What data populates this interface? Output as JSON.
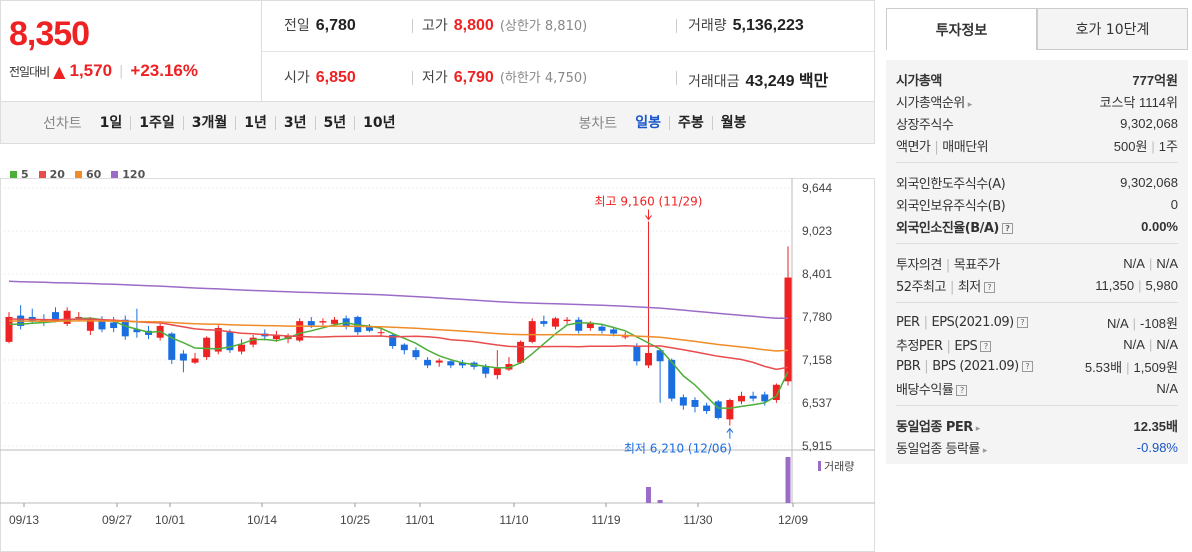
{
  "price": {
    "current": "8,350",
    "change_label": "전일대비",
    "change_symbol": "▲",
    "change_value": "1,570",
    "change_pct": "+23.16%"
  },
  "info": {
    "prev_label": "전일",
    "prev_value": "6,780",
    "high_label": "고가",
    "high_value": "8,800",
    "high_sub": "(상한가 8,810)",
    "volume_label": "거래량",
    "volume_value": "5,136,223",
    "open_label": "시가",
    "open_value": "6,850",
    "low_label": "저가",
    "low_value": "6,790",
    "low_sub": "(하한가 4,750)",
    "amount_label": "거래대금",
    "amount_value": "43,249 백만"
  },
  "period": {
    "line_label": "선차트",
    "line_items": [
      "1일",
      "1주일",
      "3개월",
      "1년",
      "3년",
      "5년",
      "10년"
    ],
    "candle_label": "봉차트",
    "candle_items": [
      "일봉",
      "주봉",
      "월봉"
    ],
    "selected_candle": "일봉"
  },
  "legend": [
    {
      "label": "5",
      "color": "#4caf3a"
    },
    {
      "label": "20",
      "color": "#e84c4c"
    },
    {
      "label": "60",
      "color": "#f08c28"
    },
    {
      "label": "120",
      "color": "#9b6bc8"
    }
  ],
  "chart_data": {
    "type": "candlestick",
    "y_ticks": [
      "9,644",
      "9,023",
      "8,401",
      "7,780",
      "7,158",
      "6,537",
      "5,915"
    ],
    "x_ticks": [
      "09/13",
      "09/27",
      "10/01",
      "10/14",
      "10/25",
      "11/01",
      "11/10",
      "11/19",
      "11/30",
      "12/09"
    ],
    "high_annotation": "최고 9,160 (11/29)",
    "low_annotation": "최저 6,210 (12/06)",
    "volume_label": "거래량",
    "candles": [
      {
        "o": 7420,
        "c": 7780,
        "h": 7850,
        "l": 7400
      },
      {
        "o": 7800,
        "c": 7650,
        "h": 7950,
        "l": 7600
      },
      {
        "o": 7780,
        "c": 7720,
        "h": 7900,
        "l": 7680
      },
      {
        "o": 7750,
        "c": 7700,
        "h": 7820,
        "l": 7650
      },
      {
        "o": 7850,
        "c": 7720,
        "h": 7920,
        "l": 7700
      },
      {
        "o": 7680,
        "c": 7870,
        "h": 7920,
        "l": 7650
      },
      {
        "o": 7780,
        "c": 7780,
        "h": 7850,
        "l": 7720
      },
      {
        "o": 7580,
        "c": 7740,
        "h": 7780,
        "l": 7520
      },
      {
        "o": 7740,
        "c": 7600,
        "h": 7790,
        "l": 7560
      },
      {
        "o": 7700,
        "c": 7620,
        "h": 7780,
        "l": 7560
      },
      {
        "o": 7740,
        "c": 7500,
        "h": 7800,
        "l": 7450
      },
      {
        "o": 7600,
        "c": 7560,
        "h": 7900,
        "l": 7480
      },
      {
        "o": 7580,
        "c": 7520,
        "h": 7650,
        "l": 7460
      },
      {
        "o": 7480,
        "c": 7650,
        "h": 7700,
        "l": 7440
      },
      {
        "o": 7540,
        "c": 7160,
        "h": 7560,
        "l": 7100
      },
      {
        "o": 7250,
        "c": 7150,
        "h": 7300,
        "l": 6980
      },
      {
        "o": 7120,
        "c": 7180,
        "h": 7260,
        "l": 7100
      },
      {
        "o": 7200,
        "c": 7480,
        "h": 7500,
        "l": 7160
      },
      {
        "o": 7280,
        "c": 7620,
        "h": 7660,
        "l": 7240
      },
      {
        "o": 7560,
        "c": 7300,
        "h": 7600,
        "l": 7260
      },
      {
        "o": 7280,
        "c": 7380,
        "h": 7460,
        "l": 7240
      },
      {
        "o": 7380,
        "c": 7480,
        "h": 7520,
        "l": 7340
      },
      {
        "o": 7540,
        "c": 7500,
        "h": 7600,
        "l": 7440
      },
      {
        "o": 7460,
        "c": 7520,
        "h": 7580,
        "l": 7420
      },
      {
        "o": 7460,
        "c": 7500,
        "h": 7540,
        "l": 7400
      },
      {
        "o": 7440,
        "c": 7720,
        "h": 7760,
        "l": 7420
      },
      {
        "o": 7720,
        "c": 7660,
        "h": 7780,
        "l": 7620
      },
      {
        "o": 7700,
        "c": 7720,
        "h": 7760,
        "l": 7660
      },
      {
        "o": 7680,
        "c": 7740,
        "h": 7780,
        "l": 7640
      },
      {
        "o": 7760,
        "c": 7640,
        "h": 7800,
        "l": 7600
      },
      {
        "o": 7780,
        "c": 7560,
        "h": 7800,
        "l": 7520
      },
      {
        "o": 7640,
        "c": 7580,
        "h": 7680,
        "l": 7560
      },
      {
        "o": 7560,
        "c": 7560,
        "h": 7620,
        "l": 7500
      },
      {
        "o": 7520,
        "c": 7360,
        "h": 7540,
        "l": 7320
      },
      {
        "o": 7380,
        "c": 7300,
        "h": 7400,
        "l": 7240
      },
      {
        "o": 7300,
        "c": 7200,
        "h": 7340,
        "l": 7160
      },
      {
        "o": 7160,
        "c": 7080,
        "h": 7200,
        "l": 7040
      },
      {
        "o": 7120,
        "c": 7150,
        "h": 7180,
        "l": 7060
      },
      {
        "o": 7140,
        "c": 7080,
        "h": 7170,
        "l": 7040
      },
      {
        "o": 7120,
        "c": 7080,
        "h": 7160,
        "l": 7040
      },
      {
        "o": 7120,
        "c": 7060,
        "h": 7140,
        "l": 7020
      },
      {
        "o": 7060,
        "c": 6960,
        "h": 7100,
        "l": 6900
      },
      {
        "o": 6940,
        "c": 7040,
        "h": 7300,
        "l": 6880
      },
      {
        "o": 7020,
        "c": 7100,
        "h": 7200,
        "l": 7000
      },
      {
        "o": 7120,
        "c": 7420,
        "h": 7440,
        "l": 7100
      },
      {
        "o": 7420,
        "c": 7720,
        "h": 7760,
        "l": 7400
      },
      {
        "o": 7720,
        "c": 7680,
        "h": 7800,
        "l": 7640
      },
      {
        "o": 7640,
        "c": 7760,
        "h": 7780,
        "l": 7600
      },
      {
        "o": 7720,
        "c": 7740,
        "h": 7780,
        "l": 7680
      },
      {
        "o": 7740,
        "c": 7580,
        "h": 7780,
        "l": 7540
      },
      {
        "o": 7620,
        "c": 7700,
        "h": 7720,
        "l": 7580
      },
      {
        "o": 7640,
        "c": 7580,
        "h": 7680,
        "l": 7540
      },
      {
        "o": 7600,
        "c": 7540,
        "h": 7640,
        "l": 7500
      },
      {
        "o": 7500,
        "c": 7500,
        "h": 7560,
        "l": 7460
      },
      {
        "o": 7360,
        "c": 7140,
        "h": 7400,
        "l": 7080
      },
      {
        "o": 7080,
        "c": 7260,
        "h": 9160,
        "l": 7040
      },
      {
        "o": 7300,
        "c": 7140,
        "h": 7320,
        "l": 6540
      },
      {
        "o": 7160,
        "c": 6600,
        "h": 7180,
        "l": 6560
      },
      {
        "o": 6620,
        "c": 6500,
        "h": 6660,
        "l": 6440
      },
      {
        "o": 6580,
        "c": 6480,
        "h": 6620,
        "l": 6400
      },
      {
        "o": 6500,
        "c": 6420,
        "h": 6540,
        "l": 6380
      },
      {
        "o": 6560,
        "c": 6320,
        "h": 6580,
        "l": 6300
      },
      {
        "o": 6300,
        "c": 6580,
        "h": 6600,
        "l": 6210
      },
      {
        "o": 6560,
        "c": 6640,
        "h": 6700,
        "l": 6520
      },
      {
        "o": 6640,
        "c": 6600,
        "h": 6700,
        "l": 6560
      },
      {
        "o": 6660,
        "c": 6560,
        "h": 6700,
        "l": 6500
      },
      {
        "o": 6580,
        "c": 6800,
        "h": 6820,
        "l": 6540
      },
      {
        "o": 6850,
        "c": 8350,
        "h": 8800,
        "l": 6790
      }
    ]
  },
  "right": {
    "tabs": [
      "투자정보",
      "호가 10단계"
    ],
    "sec1": [
      {
        "k": "시가총액",
        "v": "777억원",
        "bold": true
      },
      {
        "k": "시가총액순위",
        "v": "코스닥 1114위",
        "arrow": true
      },
      {
        "k": "상장주식수",
        "v": "9,302,068"
      },
      {
        "k1": "액면가",
        "k2": "매매단위",
        "v1": "500원",
        "v2": "1주"
      }
    ],
    "sec2": [
      {
        "k": "외국인한도주식수(A)",
        "v": "9,302,068"
      },
      {
        "k": "외국인보유주식수(B)",
        "v": "0"
      },
      {
        "k": "외국인소진율(B/A)",
        "v": "0.00%",
        "bold": true,
        "q": true
      }
    ],
    "sec3": [
      {
        "k1": "투자의견",
        "k2": "목표주가",
        "v1": "N/A",
        "v2": "N/A"
      },
      {
        "k1": "52주최고",
        "k2": "최저",
        "v1": "11,350",
        "v2": "5,980",
        "q": true
      }
    ],
    "sec4": [
      {
        "k1": "PER",
        "k2": "EPS(2021.09)",
        "v1": "N/A",
        "v2": "-108원",
        "q": true
      },
      {
        "k1": "추정PER",
        "k2": "EPS",
        "v1": "N/A",
        "v2": "N/A",
        "q": true
      },
      {
        "k1": "PBR",
        "k2": "BPS (2021.09)",
        "v1": "5.53배",
        "v2": "1,509원",
        "q": true
      },
      {
        "k": "배당수익률",
        "v": "N/A",
        "q": true
      }
    ],
    "sec5": [
      {
        "k": "동일업종 PER",
        "v": "12.35배",
        "bold": true,
        "arrow": true
      },
      {
        "k": "동일업종 등락률",
        "v": "-0.98%",
        "blue": true,
        "arrow": true
      }
    ]
  }
}
